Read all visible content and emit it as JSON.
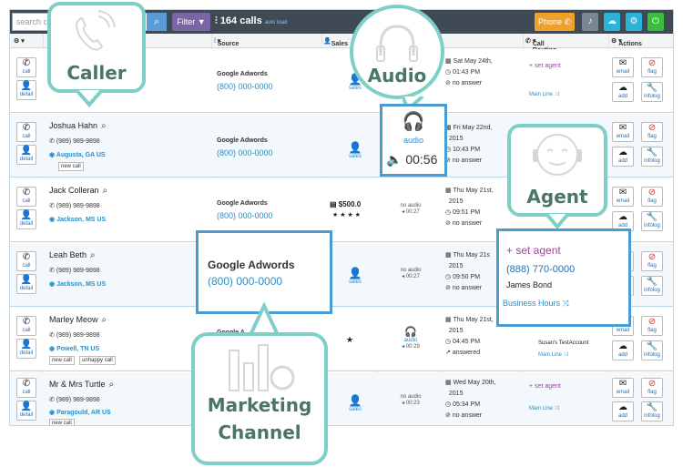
{
  "topbar": {
    "search_placeholder": "search c",
    "filter_label": "Filter",
    "calls_count": "164 calls",
    "auto_load": "auto load",
    "phone_label": "Phone"
  },
  "columns": {
    "settings": "",
    "source": "Source",
    "sales": "Sales",
    "call_routing": "Call Routing",
    "actions": "Actions"
  },
  "buttons": {
    "call": "call",
    "detail": "detail",
    "email": "email",
    "flag": "flag",
    "add": "add",
    "infolog": "infolog",
    "new_call": "new call",
    "unhappy_call": "unhappy call",
    "sales": "sales"
  },
  "rows": [
    {
      "name": "",
      "phone": "",
      "location": "",
      "source": "Google Adwords",
      "source_number": "(800) 000-0000",
      "date1": "Sat May 24th,",
      "date2": "",
      "time": "01:43 PM",
      "status": "no answer",
      "agent": "set agent",
      "line": "Main Line"
    },
    {
      "name": "Joshua Hahn",
      "phone": "(989) 989-9898",
      "location": "Augusta, GA US",
      "source": "Google Adwords",
      "source_number": "(800) 000-0000",
      "date1": "Fri May 22nd,",
      "date2": "2015",
      "time": "10:43 PM",
      "status": "no answer",
      "audio_label": "audio"
    },
    {
      "name": "Jack Colleran",
      "phone": "(989) 989-9898",
      "location": "Jackson, MS US",
      "source": "Google Adwords",
      "source_number": "(800) 000-0000",
      "sales_value": "$500.0",
      "stars": "★ ★ ★ ★",
      "audio_status": "no audio",
      "audio_time": "00:27",
      "date1": "Thu May 21st,",
      "date2": "2015",
      "time": "09:51 PM",
      "status": "no answer"
    },
    {
      "name": "Leah Beth",
      "phone": "(989) 989-9898",
      "location": "Jackson, MS US",
      "audio_status": "no audio",
      "audio_time": "00:27",
      "date1": "Thu May 21s",
      "date2": "2015",
      "time": "09:50 PM",
      "status": "no answer"
    },
    {
      "name": "Marley Meow",
      "phone": "(989) 989-9898",
      "location": "Powell, TN US",
      "source": "Google A",
      "stars": "★",
      "audio_label": "audio",
      "audio_time": "00:29",
      "date1": "Thu May 21st,",
      "date2": "2015",
      "time": "04:45 PM",
      "status": "answered",
      "agent_name": "Susan's TestAccount",
      "line": "Main Line"
    },
    {
      "name": "Mr & Mrs Turtle",
      "phone": "(989) 989-9898",
      "location": "Paragould, AR US",
      "audio_status": "no audio",
      "audio_time": "00:23",
      "date1": "Wed May 20th,",
      "date2": "2015",
      "time": "05:34 PM",
      "status": "no answer",
      "agent": "set agent",
      "line": "Main Line"
    }
  ],
  "callouts": {
    "caller": "Caller",
    "audio": "Audio",
    "agent": "Agent",
    "marketing": "Marketing",
    "channel": "Channel"
  },
  "highlight_source": {
    "name": "Google Adwords",
    "number": "(800) 000-0000"
  },
  "highlight_audio": {
    "label": "audio",
    "time": "00:56"
  },
  "highlight_agent": {
    "set": "set agent",
    "number": "(888) 770-0000",
    "name": "James Bond",
    "hours": "Business Hours"
  }
}
